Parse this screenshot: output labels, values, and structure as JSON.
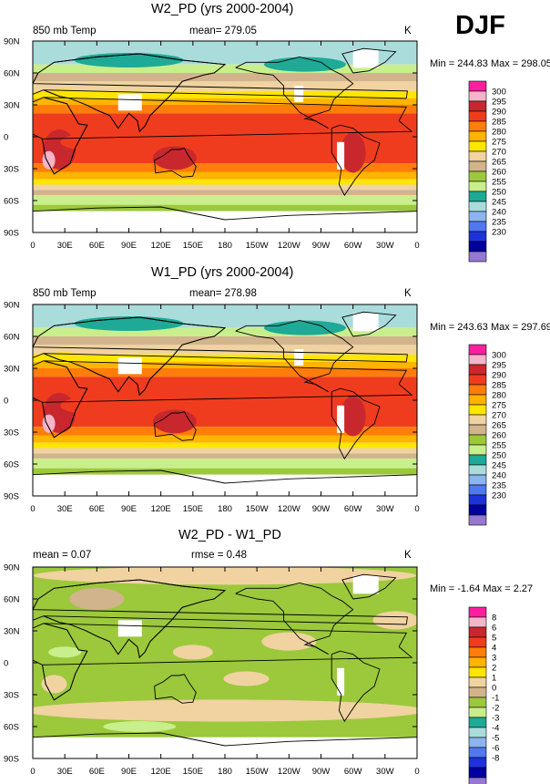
{
  "season": "DJF",
  "x_ticks": [
    "0",
    "30E",
    "60E",
    "90E",
    "120E",
    "150E",
    "180",
    "150W",
    "120W",
    "90W",
    "60W",
    "30W",
    "0"
  ],
  "y_ticks": [
    "90N",
    "60N",
    "30N",
    "0",
    "30S",
    "60S",
    "90S"
  ],
  "panels": [
    {
      "title": "W2_PD (yrs 2000-2004)",
      "left_label": "850 mb Temp",
      "mean_label": "mean= 279.05",
      "rmse_label": "",
      "unit": "K",
      "minmax": "Min = 244.83 Max = 298.05",
      "colorbar_labels": [
        "300",
        "295",
        "290",
        "285",
        "280",
        "275",
        "270",
        "265",
        "260",
        "255",
        "250",
        "245",
        "240",
        "235",
        "230"
      ]
    },
    {
      "title": "W1_PD (yrs 2000-2004)",
      "left_label": "850 mb Temp",
      "mean_label": "mean= 278.98",
      "rmse_label": "",
      "unit": "K",
      "minmax": "Min = 243.63 Max = 297.69",
      "colorbar_labels": [
        "300",
        "295",
        "290",
        "285",
        "280",
        "275",
        "270",
        "265",
        "260",
        "255",
        "250",
        "245",
        "240",
        "235",
        "230"
      ]
    },
    {
      "title": "W2_PD - W1_PD",
      "left_label": "mean =  0.07",
      "mean_label": "rmse =  0.48",
      "rmse_label": "",
      "unit": "K",
      "minmax": "Min =  -1.64 Max =  2.27",
      "colorbar_labels": [
        "8",
        "6",
        "5",
        "4",
        "3",
        "2",
        "1",
        "0",
        "-1",
        "-2",
        "-3",
        "-4",
        "-5",
        "-6",
        "-8"
      ]
    }
  ],
  "colorbar_colors": [
    "#ff1e9e",
    "#f5b4c8",
    "#c8282d",
    "#f03c1e",
    "#ff7d0a",
    "#ffb400",
    "#ffe600",
    "#f0d3a0",
    "#d2b48c",
    "#9cc83c",
    "#c8ef8c",
    "#1eaa96",
    "#aadcdc",
    "#8cb4f0",
    "#5078f0",
    "#1e32dc",
    "#0000a0",
    "#9678d2"
  ],
  "map_colors": {
    "p290": "#f03c1e",
    "p285": "#ff7d0a",
    "p280": "#ffb400",
    "p275": "#ffe600",
    "p270": "#f0d3a0",
    "p265": "#d2b48c",
    "p260": "#9cc83c",
    "p255": "#c8ef8c",
    "p250": "#1eaa96",
    "p245": "#aadcdc",
    "p295": "#c8282d",
    "p300": "#f5b4c8",
    "blank": "#ffffff",
    "d0": "#9cc83c",
    "dpos": "#f0d3a0",
    "dpos2": "#d2b48c",
    "dneg": "#c8ef8c"
  }
}
